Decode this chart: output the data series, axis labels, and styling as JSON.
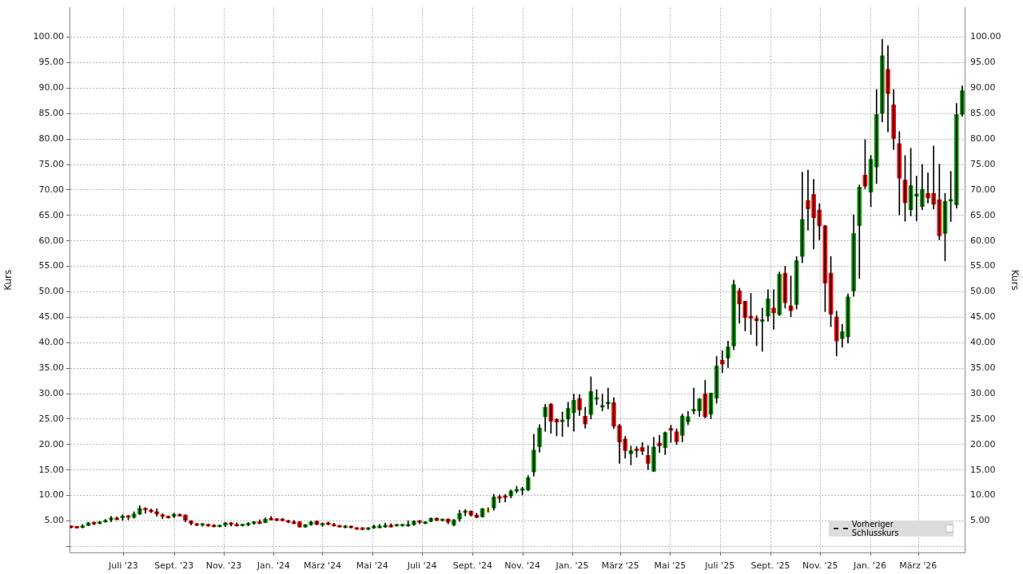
{
  "chart_data": {
    "type": "candlestick",
    "ylabel": "Kurs",
    "y2label": "Kurs",
    "grid": true,
    "legend": false,
    "annotations": [
      "Vorheriger Schlusskurs"
    ],
    "xlim": [
      "2023-04-26",
      "2026-04-27"
    ],
    "xticks": [
      {
        "value": "2023-07-01",
        "label": "Juli '23"
      },
      {
        "value": "2023-09-01",
        "label": "Sept. '23"
      },
      {
        "value": "2023-11-01",
        "label": "Nov. '23"
      },
      {
        "value": "2024-01-01",
        "label": "Jan. '24"
      },
      {
        "value": "2024-03-01",
        "label": "März '24"
      },
      {
        "value": "2024-05-01",
        "label": "Mai '24"
      },
      {
        "value": "2024-07-01",
        "label": "Juli '24"
      },
      {
        "value": "2024-09-01",
        "label": "Sept. '24"
      },
      {
        "value": "2024-11-01",
        "label": "Nov. '24"
      },
      {
        "value": "2025-01-01",
        "label": "Jan. '25"
      },
      {
        "value": "2025-03-01",
        "label": "März '25"
      },
      {
        "value": "2025-05-01",
        "label": "Mai '25"
      },
      {
        "value": "2025-07-01",
        "label": "Juli '25"
      },
      {
        "value": "2025-09-01",
        "label": "Sept. '25"
      },
      {
        "value": "2025-11-01",
        "label": "Nov. '25"
      },
      {
        "value": "2026-01-01",
        "label": "Jan. '26"
      },
      {
        "value": "2026-03-01",
        "label": "März '26"
      }
    ],
    "ylim": [
      -1.2,
      105.8
    ],
    "yticks": [
      {
        "value": 0,
        "label": null
      },
      {
        "value": 5,
        "label": "5.00"
      },
      {
        "value": 10,
        "label": "10.00"
      },
      {
        "value": 15,
        "label": "15.00"
      },
      {
        "value": 20,
        "label": "20.00"
      },
      {
        "value": 25,
        "label": "25.00"
      },
      {
        "value": 30,
        "label": "30.00"
      },
      {
        "value": 35,
        "label": "35.00"
      },
      {
        "value": 40,
        "label": "40.00"
      },
      {
        "value": 45,
        "label": "45.00"
      },
      {
        "value": 50,
        "label": "50.00"
      },
      {
        "value": 55,
        "label": "55.00"
      },
      {
        "value": 60,
        "label": "60.00"
      },
      {
        "value": 65,
        "label": "65.00"
      },
      {
        "value": 70,
        "label": "70.00"
      },
      {
        "value": 75,
        "label": "75.00"
      },
      {
        "value": 80,
        "label": "80.00"
      },
      {
        "value": 85,
        "label": "85.00"
      },
      {
        "value": 90,
        "label": "90.00"
      },
      {
        "value": 95,
        "label": "95.00"
      },
      {
        "value": 100,
        "label": "100.00"
      }
    ],
    "y2lim": [
      -1.2,
      105.8
    ],
    "y2ticks": [
      {
        "value": 0,
        "label": null
      },
      {
        "value": 5,
        "label": "5.00"
      },
      {
        "value": 10,
        "label": "10.00"
      },
      {
        "value": 15,
        "label": "15.00"
      },
      {
        "value": 20,
        "label": "20.00"
      },
      {
        "value": 25,
        "label": "25.00"
      },
      {
        "value": 30,
        "label": "30.00"
      },
      {
        "value": 35,
        "label": "35.00"
      },
      {
        "value": 40,
        "label": "40.00"
      },
      {
        "value": 45,
        "label": "45.00"
      },
      {
        "value": 50,
        "label": "50.00"
      },
      {
        "value": 55,
        "label": "55.00"
      },
      {
        "value": 60,
        "label": "60.00"
      },
      {
        "value": 65,
        "label": "65.00"
      },
      {
        "value": 70,
        "label": "70.00"
      },
      {
        "value": 75,
        "label": "75.00"
      },
      {
        "value": 80,
        "label": "80.00"
      },
      {
        "value": 85,
        "label": "85.00"
      },
      {
        "value": 90,
        "label": "90.00"
      },
      {
        "value": 95,
        "label": "95.00"
      },
      {
        "value": 100,
        "label": "100.00"
      }
    ],
    "x": [
      "2023-04-28",
      "2023-05-05",
      "2023-05-12",
      "2023-05-19",
      "2023-05-26",
      "2023-06-02",
      "2023-06-09",
      "2023-06-16",
      "2023-06-23",
      "2023-06-30",
      "2023-07-07",
      "2023-07-14",
      "2023-07-21",
      "2023-07-28",
      "2023-08-04",
      "2023-08-11",
      "2023-08-18",
      "2023-08-25",
      "2023-09-01",
      "2023-09-08",
      "2023-09-15",
      "2023-09-22",
      "2023-09-29",
      "2023-10-06",
      "2023-10-13",
      "2023-10-20",
      "2023-10-27",
      "2023-11-03",
      "2023-11-10",
      "2023-11-17",
      "2023-11-24",
      "2023-12-01",
      "2023-12-08",
      "2023-12-15",
      "2023-12-22",
      "2023-12-29",
      "2024-01-05",
      "2024-01-12",
      "2024-01-19",
      "2024-01-26",
      "2024-02-02",
      "2024-02-09",
      "2024-02-16",
      "2024-02-23",
      "2024-03-01",
      "2024-03-08",
      "2024-03-15",
      "2024-03-22",
      "2024-03-29",
      "2024-04-05",
      "2024-04-12",
      "2024-04-19",
      "2024-04-26",
      "2024-05-03",
      "2024-05-10",
      "2024-05-17",
      "2024-05-24",
      "2024-05-31",
      "2024-06-07",
      "2024-06-14",
      "2024-06-21",
      "2024-06-28",
      "2024-07-05",
      "2024-07-12",
      "2024-07-19",
      "2024-07-26",
      "2024-08-02",
      "2024-08-09",
      "2024-08-16",
      "2024-08-23",
      "2024-08-30",
      "2024-09-06",
      "2024-09-13",
      "2024-09-20",
      "2024-09-27",
      "2024-10-04",
      "2024-10-11",
      "2024-10-18",
      "2024-10-25",
      "2024-11-01",
      "2024-11-08",
      "2024-11-15",
      "2024-11-22",
      "2024-11-29",
      "2024-12-06",
      "2024-12-13",
      "2024-12-20",
      "2024-12-27",
      "2025-01-03",
      "2025-01-10",
      "2025-01-17",
      "2025-01-24",
      "2025-01-31",
      "2025-02-07",
      "2025-02-14",
      "2025-02-21",
      "2025-02-28",
      "2025-03-07",
      "2025-03-14",
      "2025-03-21",
      "2025-03-28",
      "2025-04-04",
      "2025-04-11",
      "2025-04-18",
      "2025-04-25",
      "2025-05-02",
      "2025-05-09",
      "2025-05-16",
      "2025-05-23",
      "2025-05-30",
      "2025-06-06",
      "2025-06-13",
      "2025-06-20",
      "2025-06-27",
      "2025-07-04",
      "2025-07-11",
      "2025-07-18",
      "2025-07-25",
      "2025-08-01",
      "2025-08-08",
      "2025-08-15",
      "2025-08-22",
      "2025-08-29",
      "2025-09-05",
      "2025-09-12",
      "2025-09-19",
      "2025-09-26",
      "2025-10-03",
      "2025-10-10",
      "2025-10-17",
      "2025-10-24",
      "2025-10-31",
      "2025-11-07",
      "2025-11-14",
      "2025-11-21",
      "2025-11-28",
      "2025-12-05",
      "2025-12-12",
      "2025-12-19",
      "2025-12-26",
      "2026-01-02",
      "2026-01-09",
      "2026-01-16",
      "2026-01-23",
      "2026-01-30",
      "2026-02-06",
      "2026-02-13",
      "2026-02-20",
      "2026-02-27",
      "2026-03-06",
      "2026-03-13",
      "2026-03-20",
      "2026-03-27",
      "2026-04-03",
      "2026-04-10",
      "2026-04-17",
      "2026-04-24"
    ],
    "series": [
      {
        "color": "#000000",
        "colors": [
          "#ff0000",
          "#ff0000",
          "#009900",
          "#009900",
          "#ff0000",
          "#009900",
          "#009900",
          "#009900",
          "#ff0000",
          "#009900",
          "#ff0000",
          "#009900",
          "#009900",
          "#ff0000",
          "#ff0000",
          "#ff0000",
          "#ff0000",
          "#ff0000",
          "#009900",
          "#ff0000",
          "#ff0000",
          "#ff0000",
          "#ff0000",
          "#009900",
          "#ff0000",
          "#ff0000",
          "#009900",
          "#009900",
          "#ff0000",
          "#ff0000",
          "#009900",
          "#009900",
          "#009900",
          "#ff0000",
          "#009900",
          "#ff0000",
          "#ff0000",
          "#ff0000",
          "#ff0000",
          "#ff0000",
          "#ff0000",
          "#009900",
          "#009900",
          "#ff0000",
          "#009900",
          "#ff0000",
          "#ff0000",
          "#ff0000",
          "#009900",
          "#ff0000",
          "#ff0000",
          "#ff0000",
          "#009900",
          "#009900",
          "#009900",
          "#009900",
          "#ff0000",
          "#009900",
          "#009900",
          "#009900",
          "#009900",
          "#ff0000",
          "#009900",
          "#009900",
          "#ff0000",
          "#009900",
          "#ff0000",
          "#009900",
          "#009900",
          "#009900",
          "#ff0000",
          "#ff0000",
          "#009900",
          "#ffff00",
          "#009900",
          "#ff0000",
          "#ff0000",
          "#009900",
          "#009900",
          "#009900",
          "#009900",
          "#009900",
          "#009900",
          "#009900",
          "#ff0000",
          "#ff0000",
          "#009900",
          "#009900",
          "#009900",
          "#ff0000",
          "#ff0000",
          "#009900",
          "#009900",
          "#009900",
          "#009900",
          "#ff0000",
          "#ff0000",
          "#ff0000",
          "#009900",
          "#ff0000",
          "#ff0000",
          "#ff0000",
          "#009900",
          "#ff0000",
          "#009900",
          "#ff0000",
          "#ff0000",
          "#009900",
          "#009900",
          "#009900",
          "#009900",
          "#ff0000",
          "#009900",
          "#009900",
          "#ff0000",
          "#009900",
          "#009900",
          "#ff0000",
          "#ff0000",
          "#ff0000",
          "#ff0000",
          "#009900",
          "#009900",
          "#ff0000",
          "#009900",
          "#ff0000",
          "#ff0000",
          "#009900",
          "#009900",
          "#ff0000",
          "#ff0000",
          "#ff0000",
          "#ff0000",
          "#ff0000",
          "#ff0000",
          "#009900",
          "#009900",
          "#009900",
          "#009900",
          "#ff0000",
          "#009900",
          "#009900",
          "#009900",
          "#ff0000",
          "#ff0000",
          "#ff0000",
          "#ff0000",
          "#009900",
          "#009900",
          "#009900",
          "#ff0000",
          "#ff0000",
          "#ff0000",
          "#009900",
          "#009900",
          "#009900",
          "#009900"
        ],
        "ohlc": [
          [
            3.9,
            4.0,
            3.6,
            3.7
          ],
          [
            3.8,
            3.85,
            3.55,
            3.6
          ],
          [
            3.7,
            4.3,
            3.6,
            3.95
          ],
          [
            4.1,
            4.75,
            4.0,
            4.6
          ],
          [
            4.6,
            4.8,
            4.2,
            4.4
          ],
          [
            4.5,
            4.9,
            4.4,
            4.8
          ],
          [
            4.8,
            5.3,
            4.7,
            5.05
          ],
          [
            5.25,
            5.9,
            4.8,
            5.5
          ],
          [
            5.5,
            5.8,
            5.2,
            5.25
          ],
          [
            5.6,
            6.2,
            5.1,
            5.9
          ],
          [
            6.0,
            6.1,
            5.2,
            5.7
          ],
          [
            5.7,
            6.8,
            5.5,
            6.35
          ],
          [
            6.35,
            8.0,
            6.2,
            7.45
          ],
          [
            7.45,
            7.6,
            6.5,
            7.15
          ],
          [
            7.1,
            7.35,
            6.6,
            6.8
          ],
          [
            6.8,
            7.4,
            5.9,
            6.35
          ],
          [
            6.2,
            6.4,
            5.4,
            5.9
          ],
          [
            5.85,
            6.0,
            5.5,
            5.6
          ],
          [
            5.9,
            6.5,
            5.6,
            6.3
          ],
          [
            6.15,
            6.4,
            5.9,
            5.95
          ],
          [
            6.15,
            6.2,
            4.8,
            5.15
          ],
          [
            5.0,
            5.05,
            4.2,
            4.5
          ],
          [
            4.4,
            4.5,
            4.0,
            4.15
          ],
          [
            4.15,
            4.5,
            3.95,
            4.4
          ],
          [
            4.3,
            4.4,
            3.9,
            4.0
          ],
          [
            4.1,
            4.3,
            3.8,
            3.85
          ],
          [
            3.85,
            4.2,
            3.8,
            4.15
          ],
          [
            4.15,
            4.7,
            3.85,
            4.6
          ],
          [
            4.6,
            4.7,
            4.0,
            4.3
          ],
          [
            4.3,
            4.6,
            3.95,
            4.0
          ],
          [
            4.05,
            4.35,
            3.95,
            4.25
          ],
          [
            4.2,
            4.7,
            4.0,
            4.5
          ],
          [
            4.5,
            4.9,
            4.3,
            4.8
          ],
          [
            4.8,
            5.2,
            4.4,
            4.5
          ],
          [
            4.7,
            5.6,
            4.6,
            5.35
          ],
          [
            5.5,
            5.9,
            5.15,
            5.2
          ],
          [
            5.35,
            5.5,
            5.0,
            5.1
          ],
          [
            5.35,
            5.5,
            4.95,
            5.05
          ],
          [
            5.05,
            5.15,
            4.6,
            4.75
          ],
          [
            4.8,
            5.1,
            4.4,
            4.5
          ],
          [
            4.8,
            4.85,
            3.7,
            3.8
          ],
          [
            3.8,
            4.3,
            3.7,
            4.25
          ],
          [
            4.25,
            4.95,
            4.1,
            4.8
          ],
          [
            4.95,
            5.05,
            4.2,
            4.3
          ],
          [
            4.2,
            4.6,
            3.9,
            4.5
          ],
          [
            4.6,
            4.8,
            4.2,
            4.3
          ],
          [
            4.3,
            4.55,
            3.95,
            4.0
          ],
          [
            4.05,
            4.1,
            3.75,
            3.8
          ],
          [
            3.7,
            4.1,
            3.6,
            4.0
          ],
          [
            3.95,
            4.0,
            3.6,
            3.65
          ],
          [
            3.65,
            3.7,
            3.3,
            3.35
          ],
          [
            3.65,
            3.7,
            3.2,
            3.3
          ],
          [
            3.35,
            3.7,
            3.2,
            3.65
          ],
          [
            3.6,
            4.2,
            3.5,
            3.95
          ],
          [
            3.65,
            4.3,
            3.6,
            4.0
          ],
          [
            3.8,
            4.6,
            3.7,
            4.15
          ],
          [
            4.15,
            4.45,
            3.75,
            3.8
          ],
          [
            4.0,
            4.35,
            3.95,
            4.3
          ],
          [
            4.0,
            4.35,
            3.95,
            4.3
          ],
          [
            4.0,
            5.0,
            3.9,
            4.3
          ],
          [
            4.25,
            5.05,
            4.1,
            4.95
          ],
          [
            5.05,
            5.1,
            4.4,
            4.7
          ],
          [
            4.5,
            4.85,
            4.4,
            4.8
          ],
          [
            4.9,
            5.6,
            4.8,
            5.5
          ],
          [
            5.5,
            5.65,
            5.0,
            5.1
          ],
          [
            5.05,
            5.4,
            4.95,
            5.35
          ],
          [
            5.35,
            5.4,
            4.4,
            4.75
          ],
          [
            4.2,
            5.3,
            4.0,
            5.2
          ],
          [
            5.35,
            7.1,
            4.9,
            6.45
          ],
          [
            6.65,
            7.2,
            6.0,
            6.9
          ],
          [
            6.9,
            7.0,
            5.9,
            6.15
          ],
          [
            6.15,
            6.5,
            5.6,
            5.7
          ],
          [
            5.8,
            7.45,
            5.7,
            7.4
          ],
          [
            7.2,
            7.6,
            6.7,
            7.2
          ],
          [
            7.55,
            10.2,
            7.1,
            9.7
          ],
          [
            9.7,
            10.1,
            8.6,
            9.45
          ],
          [
            9.9,
            10.2,
            8.7,
            9.6
          ],
          [
            9.9,
            11.1,
            9.5,
            10.85
          ],
          [
            10.85,
            11.8,
            10.5,
            11.15
          ],
          [
            11.0,
            11.6,
            10.1,
            11.3
          ],
          [
            11.1,
            13.9,
            10.9,
            13.45
          ],
          [
            14.6,
            22.0,
            13.8,
            18.9
          ],
          [
            19.55,
            23.9,
            18.5,
            23.25
          ],
          [
            25.45,
            27.9,
            22.6,
            27.3
          ],
          [
            27.9,
            28.1,
            22.2,
            24.6
          ],
          [
            24.95,
            25.1,
            21.7,
            24.4
          ],
          [
            24.5,
            26.4,
            21.6,
            24.8
          ],
          [
            25.0,
            28.3,
            23.5,
            27.1
          ],
          [
            26.25,
            29.9,
            22.6,
            28.7
          ],
          [
            29.0,
            29.8,
            25.7,
            26.8
          ],
          [
            25.55,
            27.3,
            23.2,
            24.05
          ],
          [
            25.9,
            33.3,
            25.0,
            30.4
          ],
          [
            28.9,
            30.8,
            27.8,
            29.05
          ],
          [
            27.35,
            29.9,
            26.6,
            27.6
          ],
          [
            28.0,
            31.1,
            27.0,
            28.25
          ],
          [
            28.2,
            29.2,
            23.1,
            23.6
          ],
          [
            23.7,
            24.0,
            16.3,
            20.5
          ],
          [
            21.05,
            21.6,
            17.3,
            18.8
          ],
          [
            18.2,
            19.7,
            16.0,
            18.8
          ],
          [
            19.05,
            19.6,
            17.5,
            18.8
          ],
          [
            19.4,
            20.4,
            18.0,
            18.7
          ],
          [
            17.85,
            19.8,
            15.1,
            16.3
          ],
          [
            14.75,
            21.4,
            14.7,
            19.5
          ],
          [
            20.3,
            21.8,
            18.4,
            19.75
          ],
          [
            19.4,
            22.5,
            18.0,
            22.35
          ],
          [
            23.15,
            23.8,
            20.4,
            22.8
          ],
          [
            22.5,
            23.1,
            20.0,
            20.55
          ],
          [
            21.8,
            26.0,
            20.5,
            25.6
          ],
          [
            24.45,
            26.5,
            23.9,
            25.45
          ],
          [
            26.6,
            31.1,
            26.0,
            26.85
          ],
          [
            26.6,
            29.05,
            25.5,
            28.95
          ],
          [
            29.95,
            32.6,
            25.2,
            25.45
          ],
          [
            25.95,
            30.1,
            25.05,
            30.1
          ],
          [
            29.1,
            37.3,
            28.1,
            35.4
          ],
          [
            36.55,
            38.4,
            34.1,
            35.8
          ],
          [
            37.0,
            40.3,
            35.1,
            39.15
          ],
          [
            39.35,
            52.3,
            38.6,
            51.4
          ],
          [
            50.2,
            50.7,
            43.8,
            47.6
          ],
          [
            48.15,
            48.15,
            42.3,
            44.95
          ],
          [
            45.2,
            49.7,
            41.6,
            44.8
          ],
          [
            44.75,
            45.3,
            39.4,
            44.3
          ],
          [
            44.2,
            46.8,
            38.3,
            44.45
          ],
          [
            45.2,
            50.4,
            44.2,
            48.6
          ],
          [
            46.8,
            50.4,
            42.6,
            45.85
          ],
          [
            45.5,
            53.9,
            45.3,
            53.45
          ],
          [
            53.6,
            55.0,
            46.8,
            47.85
          ],
          [
            47.25,
            53.1,
            45.1,
            46.3
          ],
          [
            47.5,
            56.9,
            46.6,
            56.1
          ],
          [
            56.95,
            73.5,
            55.7,
            64.2
          ],
          [
            67.9,
            73.9,
            62.1,
            66.3
          ],
          [
            69.1,
            72.1,
            58.4,
            64.55
          ],
          [
            66.05,
            67.3,
            60.2,
            62.95
          ],
          [
            62.95,
            63.05,
            46.1,
            51.7
          ],
          [
            53.65,
            56.95,
            43.15,
            45.6
          ],
          [
            45.05,
            46.2,
            37.4,
            40.35
          ],
          [
            40.8,
            43.6,
            39.1,
            42.15
          ],
          [
            41.15,
            49.6,
            39.9,
            49.0
          ],
          [
            50.15,
            65.1,
            49.1,
            61.45
          ],
          [
            63.0,
            71.0,
            52.6,
            70.55
          ],
          [
            72.9,
            79.9,
            70.25,
            70.75
          ],
          [
            69.55,
            76.8,
            66.7,
            76.0
          ],
          [
            74.5,
            89.75,
            71.25,
            84.85
          ],
          [
            85.05,
            99.6,
            83.35,
            96.35
          ],
          [
            93.7,
            98.35,
            81.4,
            88.95
          ],
          [
            86.7,
            89.75,
            77.9,
            80.1
          ],
          [
            79.1,
            81.45,
            65.1,
            72.3
          ],
          [
            71.95,
            76.75,
            63.85,
            67.5
          ],
          [
            66.1,
            78.15,
            64.9,
            70.85
          ],
          [
            68.8,
            72.7,
            63.9,
            69.2
          ],
          [
            66.75,
            75.05,
            66.1,
            70.1
          ],
          [
            69.3,
            73.35,
            67.4,
            68.45
          ],
          [
            69.3,
            78.65,
            66.25,
            67.2
          ],
          [
            68.1,
            75.05,
            60.2,
            61.0
          ],
          [
            61.45,
            69.3,
            56.05,
            67.75
          ],
          [
            67.8,
            73.65,
            63.8,
            68.1
          ],
          [
            67.05,
            87.0,
            66.4,
            84.85
          ],
          [
            84.85,
            90.45,
            84.45,
            89.5
          ]
        ]
      }
    ]
  }
}
